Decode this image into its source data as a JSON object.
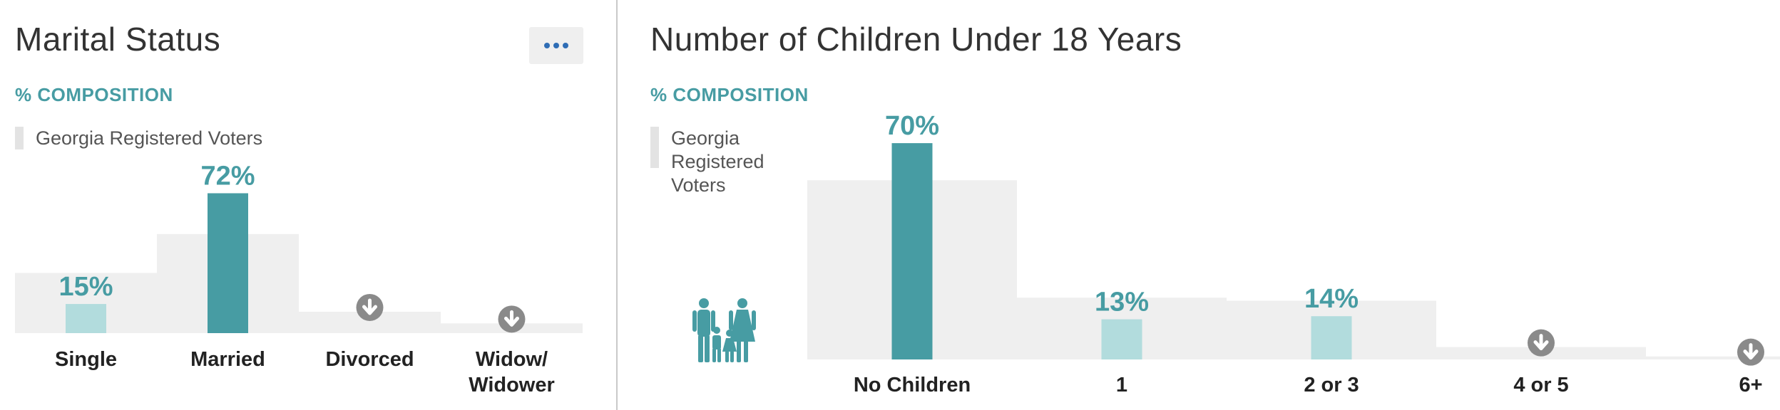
{
  "colors": {
    "accent": "#479ca3",
    "accent_light": "#b2dcdd",
    "benchmark": "#efefef",
    "suppressed_icon": "#8a8a8a",
    "menu_dots": "#2f6db5"
  },
  "marital": {
    "title": "Marital Status",
    "subtitle": "% COMPOSITION",
    "legend": "Georgia Registered Voters",
    "menu_icon": "more-horizontal-icon"
  },
  "children": {
    "title": "Number of Children Under 18 Years",
    "subtitle": "% COMPOSITION",
    "legend": [
      "Georgia",
      "Registered",
      "Voters"
    ],
    "icon": "family-icon"
  },
  "chart_data": [
    {
      "type": "bar",
      "title": "Marital Status",
      "subtitle": "% COMPOSITION",
      "categories": [
        "Single",
        "Married",
        "Divorced",
        "Widow/\nWidower"
      ],
      "series": [
        {
          "name": "",
          "values": [
            15,
            72,
            null,
            null
          ],
          "labels": [
            "15%",
            "72%",
            "",
            ""
          ],
          "highlight": [
            false,
            true,
            false,
            false
          ]
        },
        {
          "name": "Georgia Registered Voters",
          "values": [
            31,
            51,
            11,
            5
          ]
        }
      ],
      "suppressed": [
        false,
        false,
        true,
        true
      ],
      "ylim": [
        0,
        85
      ],
      "xlabel": "",
      "ylabel": ""
    },
    {
      "type": "bar",
      "title": "Number of Children Under 18 Years",
      "subtitle": "% COMPOSITION",
      "categories": [
        "No Children",
        "1",
        "2 or 3",
        "4 or 5",
        "6+"
      ],
      "series": [
        {
          "name": "",
          "values": [
            70,
            13,
            14,
            null,
            null
          ],
          "labels": [
            "70%",
            "13%",
            "14%",
            "",
            ""
          ],
          "highlight": [
            true,
            false,
            false,
            false,
            false
          ]
        },
        {
          "name": "Georgia Registered Voters",
          "values": [
            58,
            20,
            19,
            4,
            1
          ]
        }
      ],
      "suppressed": [
        false,
        false,
        false,
        true,
        true
      ],
      "ylim": [
        0,
        82
      ],
      "xlabel": "",
      "ylabel": ""
    }
  ]
}
